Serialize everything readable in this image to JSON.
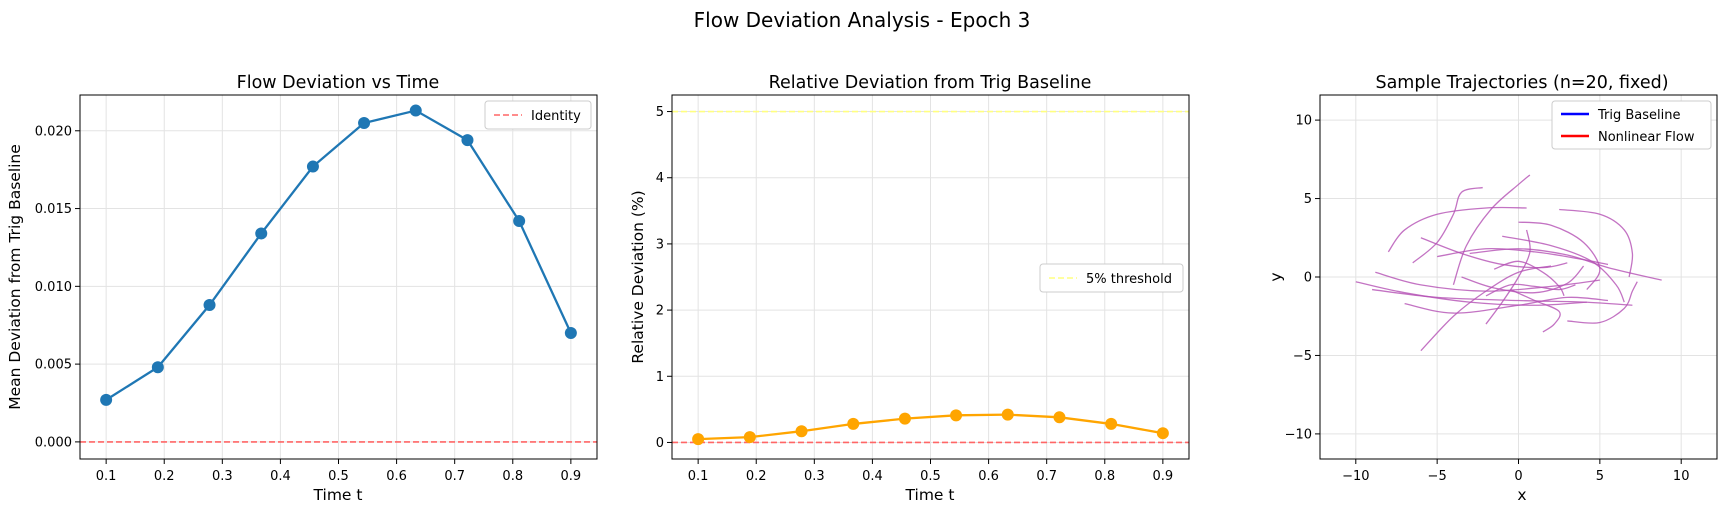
{
  "figure": {
    "suptitle": "Flow Deviation Analysis - Epoch 3"
  },
  "colors": {
    "series_blue": "#1f77b4",
    "series_orange": "#ffa500",
    "identity_red": "#ff6666",
    "threshold_yellow": "#ffff80",
    "trajectory_purple": "#b450b4",
    "trig_blue": "#0000ff",
    "nonlinear_red": "#ff0000"
  },
  "chart_data": [
    {
      "type": "line",
      "title": "Flow Deviation vs Time",
      "xlabel": "Time t",
      "ylabel": "Mean Deviation from Trig Baseline",
      "xlim": [
        0.055,
        0.945
      ],
      "ylim": [
        -0.0011,
        0.0223
      ],
      "xticks": [
        0.1,
        0.2,
        0.3,
        0.4,
        0.5,
        0.6,
        0.7,
        0.8,
        0.9
      ],
      "xtick_labels": [
        "0.1",
        "0.2",
        "0.3",
        "0.4",
        "0.5",
        "0.6",
        "0.7",
        "0.8",
        "0.9"
      ],
      "yticks": [
        0,
        0.005,
        0.01,
        0.015,
        0.02
      ],
      "ytick_labels": [
        "0.000",
        "0.005",
        "0.010",
        "0.015",
        "0.020"
      ],
      "grid": true,
      "legend": "top-right",
      "series": [
        {
          "x": [
            0.1,
            0.189,
            0.278,
            0.367,
            0.456,
            0.544,
            0.633,
            0.722,
            0.811,
            0.9
          ],
          "values": [
            0.0027,
            0.0048,
            0.0088,
            0.0134,
            0.0177,
            0.0205,
            0.0213,
            0.0194,
            0.0142,
            0.007
          ],
          "color": "#1f77b4"
        }
      ],
      "reference_lines": [
        {
          "y": 0,
          "label": "Identity",
          "color": "#ff6666",
          "style": "dashed"
        }
      ]
    },
    {
      "type": "line",
      "title": "Relative Deviation from Trig Baseline",
      "xlabel": "Time t",
      "ylabel": "Relative Deviation (%)",
      "xlim": [
        0.055,
        0.945
      ],
      "ylim": [
        -0.25,
        5.25
      ],
      "xticks": [
        0.1,
        0.2,
        0.3,
        0.4,
        0.5,
        0.6,
        0.7,
        0.8,
        0.9
      ],
      "xtick_labels": [
        "0.1",
        "0.2",
        "0.3",
        "0.4",
        "0.5",
        "0.6",
        "0.7",
        "0.8",
        "0.9"
      ],
      "yticks": [
        0,
        1,
        2,
        3,
        4,
        5
      ],
      "ytick_labels": [
        "0",
        "1",
        "2",
        "3",
        "4",
        "5"
      ],
      "grid": true,
      "legend": "center-right",
      "series": [
        {
          "x": [
            0.1,
            0.189,
            0.278,
            0.367,
            0.456,
            0.544,
            0.633,
            0.722,
            0.811,
            0.9
          ],
          "values": [
            0.05,
            0.08,
            0.17,
            0.28,
            0.36,
            0.41,
            0.42,
            0.38,
            0.28,
            0.14
          ],
          "color": "#ffa500"
        }
      ],
      "reference_lines": [
        {
          "y": 5,
          "label": "5% threshold",
          "color": "#ffff80",
          "style": "dashed"
        },
        {
          "y": 0,
          "label": "",
          "color": "#ff6666",
          "style": "dashed"
        }
      ]
    },
    {
      "type": "line",
      "title": "Sample Trajectories (n=20, fixed)",
      "xlabel": "x",
      "ylabel": "y",
      "xlim": [
        -12.2,
        12.2
      ],
      "ylim": [
        -11.6,
        11.6
      ],
      "xticks": [
        -10,
        -5,
        0,
        5,
        10
      ],
      "xtick_labels": [
        "−10",
        "−5",
        "0",
        "5",
        "10"
      ],
      "yticks": [
        -10,
        -5,
        0,
        5,
        10
      ],
      "ytick_labels": [
        "−10",
        "−5",
        "0",
        "5",
        "10"
      ],
      "grid": true,
      "legend": "top-right",
      "legend_entries": [
        {
          "label": "Trig Baseline",
          "color": "#0000ff"
        },
        {
          "label": "Nonlinear Flow",
          "color": "#ff0000"
        }
      ],
      "trajectories": [
        [
          [
            -10,
            -0.3
          ],
          [
            -7,
            -1
          ],
          [
            -3,
            -1.6
          ],
          [
            1,
            -1.8
          ],
          [
            4.2,
            -1.6
          ]
        ],
        [
          [
            -9,
            -0.8
          ],
          [
            -5,
            -1.3
          ],
          [
            0,
            -1.5
          ],
          [
            4,
            -1.6
          ],
          [
            7,
            -1.8
          ]
        ],
        [
          [
            -8.8,
            0.3
          ],
          [
            -6,
            -0.5
          ],
          [
            -2,
            -0.9
          ],
          [
            2,
            -0.6
          ],
          [
            5,
            -0.2
          ]
        ],
        [
          [
            -6,
            -4.7
          ],
          [
            -4,
            -2.5
          ],
          [
            -2,
            -0.9
          ],
          [
            0,
            0.3
          ],
          [
            2,
            0.7
          ]
        ],
        [
          [
            -5,
            1.3
          ],
          [
            -2,
            1.8
          ],
          [
            1,
            1.6
          ],
          [
            3.5,
            1.2
          ],
          [
            5.5,
            0.8
          ]
        ],
        [
          [
            -6.5,
            0.9
          ],
          [
            -5,
            2.2
          ],
          [
            -4,
            4
          ],
          [
            -3.5,
            5.4
          ],
          [
            -2.2,
            5.7
          ]
        ],
        [
          [
            -4,
            -0.5
          ],
          [
            -3.2,
            2
          ],
          [
            -1.7,
            4.3
          ],
          [
            0,
            5.9
          ],
          [
            0.7,
            6.5
          ]
        ],
        [
          [
            -8,
            1.6
          ],
          [
            -7,
            3
          ],
          [
            -5,
            4
          ],
          [
            -2,
            4.4
          ],
          [
            0.5,
            4.4
          ]
        ],
        [
          [
            -6,
            2.5
          ],
          [
            -3.5,
            1.5
          ],
          [
            -1,
            0.8
          ],
          [
            1.5,
            0.6
          ],
          [
            3,
            0.9
          ]
        ],
        [
          [
            -1,
            2.6
          ],
          [
            2,
            2
          ],
          [
            4.5,
            1
          ],
          [
            6,
            -0.5
          ],
          [
            6.5,
            -1.6
          ]
        ],
        [
          [
            2.5,
            4.3
          ],
          [
            5,
            4
          ],
          [
            6.5,
            3
          ],
          [
            7,
            1.5
          ],
          [
            6.8,
            0
          ]
        ],
        [
          [
            -7,
            -1.7
          ],
          [
            -4,
            -2.3
          ],
          [
            0,
            -1.8
          ],
          [
            3,
            -1.3
          ],
          [
            5.5,
            -1.5
          ]
        ],
        [
          [
            3,
            -2.8
          ],
          [
            5,
            -2.9
          ],
          [
            6.5,
            -2
          ],
          [
            7,
            -0.9
          ],
          [
            7.3,
            -0.3
          ]
        ],
        [
          [
            -2,
            -3
          ],
          [
            -1,
            -1.6
          ],
          [
            0,
            0
          ],
          [
            0.7,
            1.6
          ],
          [
            0.5,
            3
          ]
        ],
        [
          [
            -3,
            1.5
          ],
          [
            0,
            1.8
          ],
          [
            3,
            1.4
          ],
          [
            5.5,
            0.6
          ],
          [
            8.8,
            -0.2
          ]
        ],
        [
          [
            0,
            3.5
          ],
          [
            2,
            3.3
          ],
          [
            4,
            2.2
          ],
          [
            5,
            0.5
          ],
          [
            4.2,
            -0.8
          ]
        ],
        [
          [
            -3.5,
            0
          ],
          [
            -1.5,
            -0.7
          ],
          [
            1,
            -1
          ],
          [
            3,
            -0.4
          ],
          [
            4,
            0.7
          ]
        ],
        [
          [
            -1.5,
            0.5
          ],
          [
            0,
            1
          ],
          [
            1.5,
            0.3
          ],
          [
            2.5,
            -0.6
          ],
          [
            2.8,
            -1.2
          ]
        ],
        [
          [
            -2,
            -1.2
          ],
          [
            -0.5,
            -0.5
          ],
          [
            1,
            -0.6
          ],
          [
            2.5,
            -0.8
          ],
          [
            3.5,
            -0.5
          ]
        ],
        [
          [
            -0.5,
            -0.8
          ],
          [
            1,
            -1.5
          ],
          [
            2.5,
            -2.2
          ],
          [
            2.2,
            -3
          ],
          [
            1.5,
            -3.5
          ]
        ]
      ]
    }
  ]
}
